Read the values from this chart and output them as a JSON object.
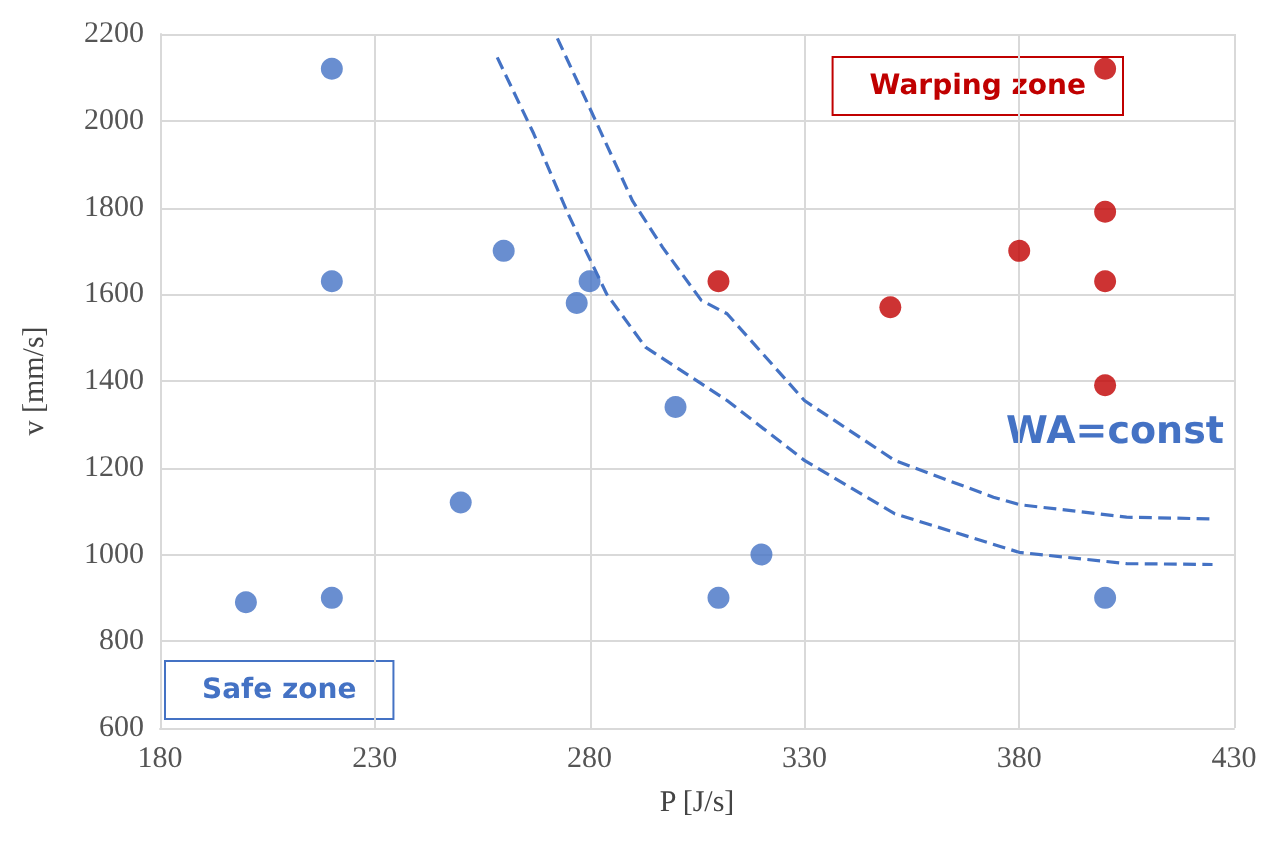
{
  "chart_data": {
    "type": "scatter",
    "xlabel": "P [J/s]",
    "ylabel": "v [mm/s]",
    "xlim": [
      180,
      430
    ],
    "xticks": [
      180,
      230,
      280,
      330,
      380,
      430
    ],
    "ylim": [
      600,
      2200
    ],
    "yticks": [
      600,
      800,
      1000,
      1200,
      1400,
      1600,
      1800,
      2000,
      2200
    ],
    "grid": true,
    "marker": "circle",
    "annotations": [
      "Warping zone",
      "Safe zone",
      "WA=const"
    ],
    "series": [
      {
        "type": "scatter",
        "color": "#4472c4",
        "x": [
          220,
          220,
          260,
          280,
          277,
          300,
          250,
          200,
          220,
          310,
          320,
          400
        ],
        "values": [
          2120,
          1630,
          1700,
          1630,
          1580,
          1340,
          1120,
          890,
          900,
          900,
          1000,
          900
        ]
      },
      {
        "type": "scatter",
        "color": "#c00000",
        "x": [
          400,
          400,
          380,
          400,
          350,
          310,
          400
        ],
        "values": [
          2120,
          1790,
          1700,
          1630,
          1570,
          1630,
          1390
        ]
      },
      {
        "type": "line",
        "color": "#4472c4",
        "line_style": "dashed",
        "marker": "none",
        "x": [
          272.5,
          280,
          290,
          297,
          306,
          312,
          330,
          351,
          374,
          380,
          405,
          425
        ],
        "values": [
          2190,
          2030,
          1815,
          1708,
          1586,
          1555,
          1355,
          1217,
          1132,
          1115,
          1086,
          1082
        ]
      },
      {
        "type": "line",
        "color": "#4472c4",
        "line_style": "dashed",
        "marker": "none",
        "x": [
          258.5,
          267,
          275,
          284,
          293,
          306,
          312,
          330,
          351,
          380,
          405,
          425
        ],
        "values": [
          2146,
          1970,
          1785,
          1600,
          1478,
          1394,
          1355,
          1217,
          1094,
          1005,
          979,
          977
        ]
      }
    ]
  }
}
